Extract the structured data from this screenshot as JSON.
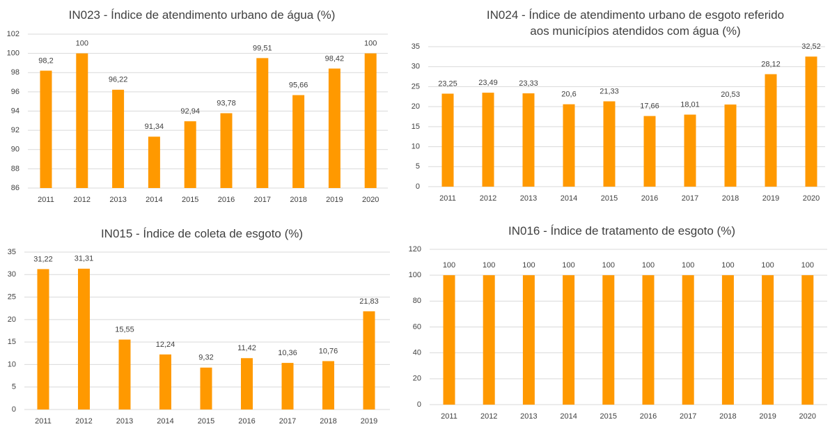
{
  "chart_data": [
    {
      "type": "bar",
      "title": "IN023 - Índice de atendimento urbano de água (%)",
      "categories": [
        "2011",
        "2012",
        "2013",
        "2014",
        "2015",
        "2016",
        "2017",
        "2018",
        "2019",
        "2020"
      ],
      "values": [
        98.2,
        100,
        96.22,
        91.34,
        92.94,
        93.78,
        99.51,
        95.66,
        98.42,
        100
      ],
      "value_labels": [
        "98,2",
        "100",
        "96,22",
        "91,34",
        "92,94",
        "93,78",
        "99,51",
        "95,66",
        "98,42",
        "100"
      ],
      "color": "#ff9900",
      "ylim": [
        86,
        102
      ],
      "yticks": [
        86,
        88,
        90,
        92,
        94,
        96,
        98,
        100,
        102
      ],
      "grid": true
    },
    {
      "type": "bar",
      "title": "IN024 - Índice de atendimento urbano de esgoto referido aos municípios atendidos com água (%)",
      "categories": [
        "2011",
        "2012",
        "2013",
        "2014",
        "2015",
        "2016",
        "2017",
        "2018",
        "2019",
        "2020"
      ],
      "values": [
        23.25,
        23.49,
        23.33,
        20.6,
        21.33,
        17.66,
        18.01,
        20.53,
        28.12,
        32.52
      ],
      "value_labels": [
        "23,25",
        "23,49",
        "23,33",
        "20,6",
        "21,33",
        "17,66",
        "18,01",
        "20,53",
        "28,12",
        "32,52"
      ],
      "color": "#ff9900",
      "ylim": [
        0,
        35
      ],
      "yticks": [
        0,
        5,
        10,
        15,
        20,
        25,
        30,
        35
      ],
      "grid": true
    },
    {
      "type": "bar",
      "title": "IN015 - Índice de coleta de esgoto (%)",
      "categories": [
        "2011",
        "2012",
        "2013",
        "2014",
        "2015",
        "2016",
        "2017",
        "2018",
        "2019"
      ],
      "values": [
        31.22,
        31.31,
        15.55,
        12.24,
        9.32,
        11.42,
        10.36,
        10.76,
        21.83
      ],
      "value_labels": [
        "31,22",
        "31,31",
        "15,55",
        "12,24",
        "9,32",
        "11,42",
        "10,36",
        "10,76",
        "21,83"
      ],
      "color": "#ff9900",
      "ylim": [
        0,
        35
      ],
      "yticks": [
        0,
        5,
        10,
        15,
        20,
        25,
        30,
        35
      ],
      "grid": true
    },
    {
      "type": "bar",
      "title": "IN016 - Índice de tratamento de esgoto (%)",
      "categories": [
        "2011",
        "2012",
        "2013",
        "2014",
        "2015",
        "2016",
        "2017",
        "2018",
        "2019",
        "2020"
      ],
      "values": [
        100,
        100,
        100,
        100,
        100,
        100,
        100,
        100,
        100,
        100
      ],
      "color": "#ff9900",
      "ylim": [
        0,
        120
      ],
      "yticks": [
        0,
        20,
        40,
        60,
        80,
        100,
        120
      ],
      "grid": true
    }
  ]
}
